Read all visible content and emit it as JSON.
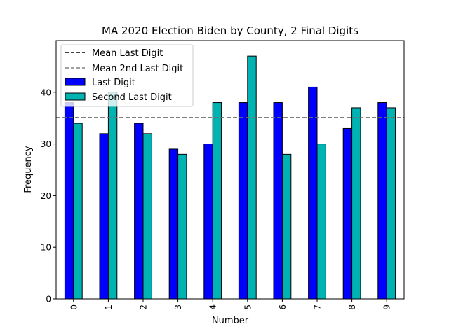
{
  "chart_data": {
    "type": "bar",
    "title": "MA 2020 Election Biden by County, 2 Final Digits",
    "xlabel": "Number",
    "ylabel": "Frequency",
    "categories": [
      "0",
      "1",
      "2",
      "3",
      "4",
      "5",
      "6",
      "7",
      "8",
      "9"
    ],
    "ylim": [
      0,
      50
    ],
    "yticks": [
      "0",
      "10",
      "20",
      "30",
      "40"
    ],
    "series": [
      {
        "name": "Last Digit",
        "color": "#0000ff",
        "values": [
          38,
          32,
          34,
          29,
          30,
          38,
          38,
          41,
          33,
          38
        ]
      },
      {
        "name": "Second Last Digit",
        "color": "#00b3b3",
        "values": [
          34,
          40,
          32,
          28,
          38,
          47,
          28,
          30,
          37,
          37
        ]
      }
    ],
    "reference_lines": [
      {
        "name": "Mean Last Digit",
        "value": 35.1,
        "color": "#000000",
        "style": "dashed"
      },
      {
        "name": "Mean 2nd Last Digit",
        "value": 35.1,
        "color": "#808080",
        "style": "dashed"
      }
    ],
    "legend_placement": "top-left",
    "grid": false
  }
}
